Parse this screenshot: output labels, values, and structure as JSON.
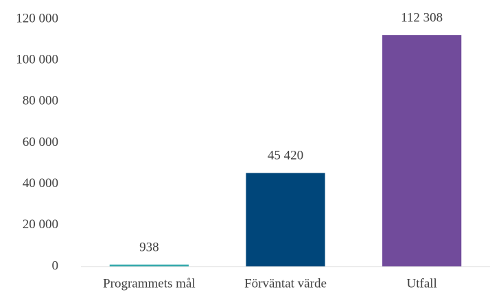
{
  "chart_data": {
    "type": "bar",
    "categories": [
      "Programmets mål",
      "Förväntat värde",
      "Utfall"
    ],
    "values": [
      938,
      45420,
      112308
    ],
    "value_labels": [
      "938",
      "45 420",
      "112 308"
    ],
    "colors": [
      "#2aa5a8",
      "#00467a",
      "#714b9b"
    ],
    "ylim": [
      0,
      120000
    ],
    "yticks": [
      0,
      {
        "value": 20000,
        "label": "20 000"
      },
      {
        "value": 40000,
        "label": "40 000"
      },
      {
        "value": 60000,
        "label": "60 000"
      },
      {
        "value": 80000,
        "label": "80 000"
      },
      {
        "value": 100000,
        "label": "100 000"
      },
      {
        "value": 120000,
        "label": "120 000"
      }
    ],
    "grid": false
  }
}
